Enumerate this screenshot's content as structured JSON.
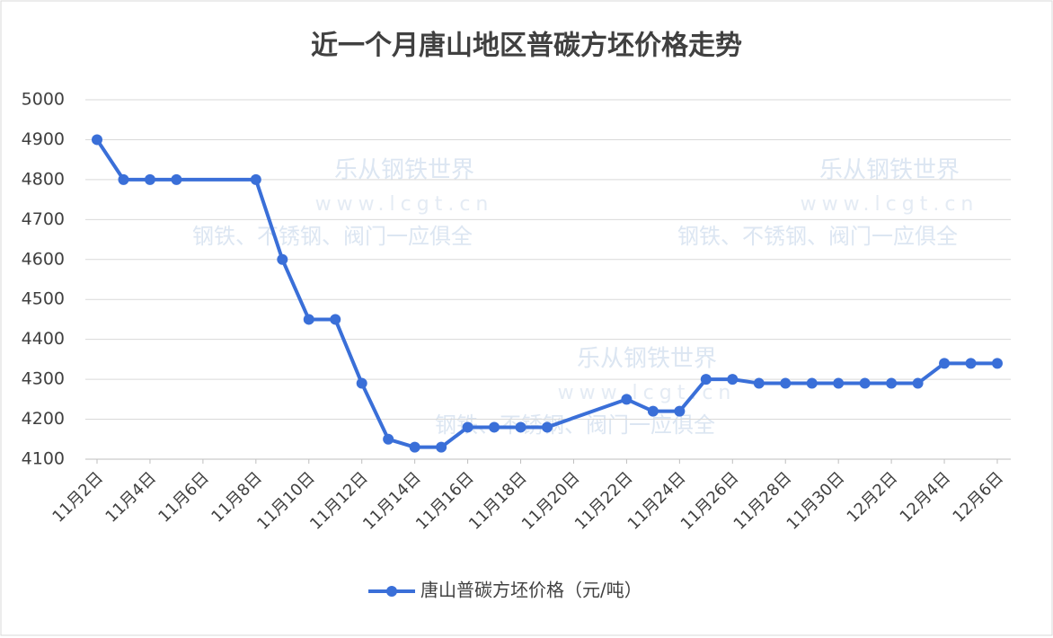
{
  "chart_data": {
    "type": "line",
    "title": "近一个月唐山地区普碳方坯价格走势",
    "x": [
      "11月2日",
      "11月3日",
      "11月4日",
      "11月5日",
      "11月8日",
      "11月9日",
      "11月10日",
      "11月11日",
      "11月12日",
      "11月13日",
      "11月14日",
      "11月15日",
      "11月16日",
      "11月17日",
      "11月18日",
      "11月19日",
      "11月22日",
      "11月23日",
      "11月24日",
      "11月25日",
      "11月26日",
      "11月27日",
      "11月28日",
      "11月29日",
      "11月30日",
      "12月1日",
      "12月2日",
      "12月3日",
      "12月4日",
      "12月5日",
      "12月6日"
    ],
    "series": [
      {
        "name": "唐山普碳方坯价格（元/吨）",
        "color": "#3a6fd8",
        "values": [
          4900,
          4800,
          4800,
          4800,
          4800,
          4600,
          4450,
          4450,
          4290,
          4150,
          4130,
          4130,
          4180,
          4180,
          4180,
          4180,
          4250,
          4220,
          4220,
          4300,
          4300,
          4290,
          4290,
          4290,
          4290,
          4290,
          4290,
          4290,
          4340,
          4340,
          4340
        ]
      }
    ],
    "xticks": [
      "11月2日",
      "11月4日",
      "11月6日",
      "11月8日",
      "11月10日",
      "11月12日",
      "11月14日",
      "11月16日",
      "11月18日",
      "11月20日",
      "11月22日",
      "11月24日",
      "11月26日",
      "11月28日",
      "11月30日",
      "12月2日",
      "12月4日",
      "12月6日"
    ],
    "ylim": [
      4100,
      5000
    ],
    "yticks": [
      4100,
      4200,
      4300,
      4400,
      4500,
      4600,
      4700,
      4800,
      4900,
      5000
    ],
    "grid": true,
    "legend": "bottom",
    "watermark": {
      "name": "乐从钢铁世界",
      "url": "www.lcgt.cn",
      "slogan": "钢铁、不锈钢、阀门一应俱全"
    }
  }
}
